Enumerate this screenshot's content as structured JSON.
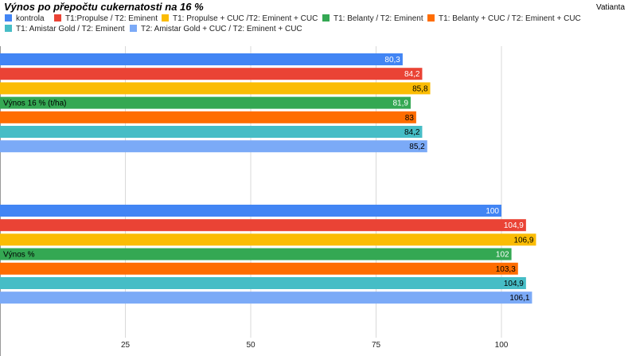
{
  "chart_data": {
    "type": "bar",
    "orientation": "horizontal",
    "title": "Výnos po přepočtu cukernatosti na 16 %",
    "legend_title": "Vatianta",
    "legend_position": "top",
    "categories": [
      "Výnos 16 % (t/ha)",
      "Výnos %"
    ],
    "xlim": [
      0,
      105
    ],
    "x_ticks": [
      25,
      50,
      75,
      100
    ],
    "grid": true,
    "series": [
      {
        "name": "kontrola",
        "color": "#4285f4",
        "label_color": "#ffffff",
        "values": [
          80.3,
          100
        ],
        "labels": [
          "80,3",
          "100"
        ]
      },
      {
        "name": "T1:Propulse / T2: Eminent",
        "color": "#ea4335",
        "label_color": "#ffffff",
        "values": [
          84.2,
          104.9
        ],
        "labels": [
          "84,2",
          "104,9"
        ]
      },
      {
        "name": "T1: Propulse + CUC /T2: Eminent + CUC",
        "color": "#fbbc04",
        "label_color": "#000000",
        "values": [
          85.8,
          106.9
        ],
        "labels": [
          "85,8",
          "106,9"
        ]
      },
      {
        "name": "T1: Belanty / T2: Eminent",
        "color": "#34a853",
        "label_color": "#ffffff",
        "values": [
          81.9,
          102
        ],
        "labels": [
          "81,9",
          "102"
        ]
      },
      {
        "name": "T1: Belanty + CUC / T2: Eminent + CUC",
        "color": "#ff6d01",
        "label_color": "#000000",
        "values": [
          83,
          103.3
        ],
        "labels": [
          "83",
          "103,3"
        ]
      },
      {
        "name": "T1: Amistar Gold / T2: Eminent",
        "color": "#46bdc6",
        "label_color": "#000000",
        "values": [
          84.2,
          104.9
        ],
        "labels": [
          "84,2",
          "104,9"
        ]
      },
      {
        "name": "T2: Amistar Gold + CUC / T2: Eminent + CUC",
        "color": "#7baaf7",
        "label_color": "#000000",
        "values": [
          85.2,
          106.1
        ],
        "labels": [
          "85,2",
          "106,1"
        ]
      }
    ]
  }
}
